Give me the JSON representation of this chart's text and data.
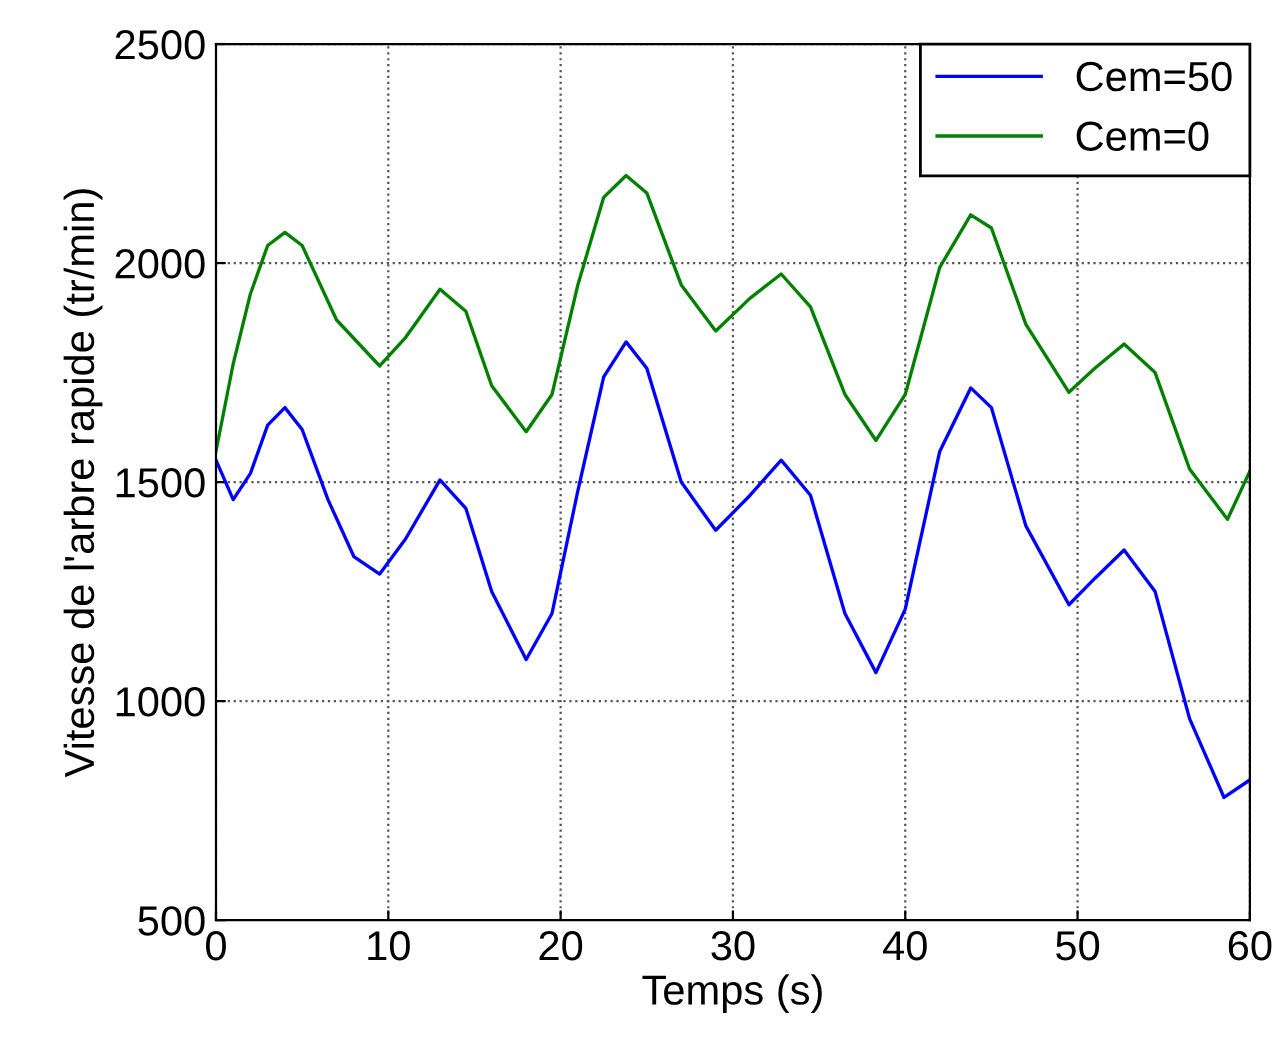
{
  "chart_data": {
    "type": "line",
    "xlabel": "Temps (s)",
    "ylabel": "Vitesse de l'arbre rapide (tr/min)",
    "xlim": [
      0,
      60
    ],
    "ylim": [
      500,
      2500
    ],
    "xticks": [
      0,
      10,
      20,
      30,
      40,
      50,
      60
    ],
    "yticks": [
      500,
      1000,
      1500,
      2000,
      2500
    ],
    "grid": true,
    "legend": "top right",
    "line_style": "solid",
    "marker": "none",
    "series": [
      {
        "name": "Cem=50",
        "color": "#0000ff",
        "x": [
          0,
          1,
          2,
          3,
          4,
          5,
          6.5,
          8,
          9.5,
          11,
          13,
          14.5,
          16,
          18,
          19.5,
          21,
          22.5,
          23.8,
          25,
          27,
          29,
          31,
          32.8,
          34.5,
          36.5,
          38.3,
          40,
          42,
          43.8,
          45,
          47,
          49.5,
          51,
          52.7,
          54.5,
          56.5,
          58.5,
          60
        ],
        "values": [
          1550,
          1460,
          1520,
          1630,
          1670,
          1620,
          1460,
          1330,
          1290,
          1370,
          1505,
          1440,
          1250,
          1095,
          1200,
          1480,
          1740,
          1820,
          1760,
          1500,
          1390,
          1470,
          1550,
          1470,
          1200,
          1065,
          1210,
          1570,
          1715,
          1670,
          1400,
          1220,
          1280,
          1345,
          1250,
          960,
          780,
          820
        ]
      },
      {
        "name": "Cem=0",
        "color": "#008000",
        "x": [
          0,
          1,
          2,
          3,
          4,
          5,
          7,
          9.5,
          11,
          13,
          14.5,
          16,
          18,
          19.5,
          21,
          22.5,
          23.8,
          25,
          27,
          29,
          31,
          32.8,
          34.5,
          36.5,
          38.3,
          40,
          42,
          43.8,
          45,
          47,
          49.5,
          51,
          52.7,
          54.5,
          56.5,
          58.7,
          60
        ],
        "values": [
          1570,
          1770,
          1930,
          2040,
          2070,
          2040,
          1870,
          1765,
          1830,
          1940,
          1890,
          1720,
          1615,
          1700,
          1950,
          2150,
          2200,
          2160,
          1950,
          1845,
          1920,
          1975,
          1900,
          1700,
          1595,
          1700,
          1990,
          2110,
          2080,
          1860,
          1705,
          1760,
          1815,
          1750,
          1530,
          1415,
          1525
        ]
      }
    ]
  }
}
